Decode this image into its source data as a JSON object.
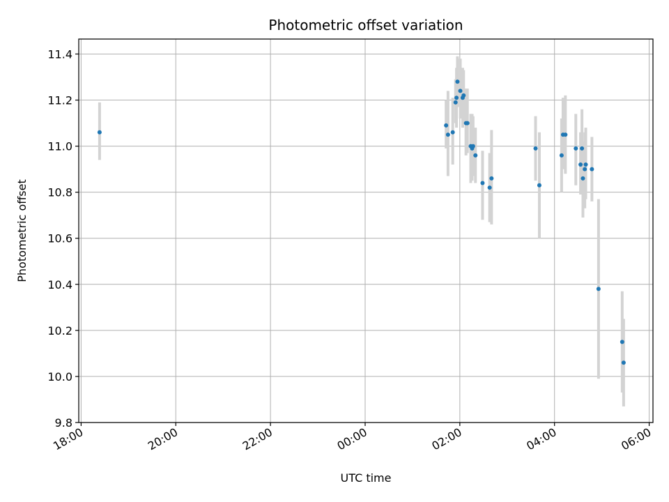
{
  "chart_data": {
    "type": "scatter",
    "title": "Photometric offset variation",
    "xlabel": "UTC time",
    "ylabel": "Photometric offset",
    "xlim": [
      -0.05,
      12.08
    ],
    "ylim": [
      9.8,
      11.465
    ],
    "grid": true,
    "x_unit": "hours since 18:00 UTC",
    "x_ticks": [
      {
        "value": 0,
        "label": "18:00"
      },
      {
        "value": 2,
        "label": "20:00"
      },
      {
        "value": 4,
        "label": "22:00"
      },
      {
        "value": 6,
        "label": "00:00"
      },
      {
        "value": 8,
        "label": "02:00"
      },
      {
        "value": 10,
        "label": "04:00"
      },
      {
        "value": 12,
        "label": "06:00"
      }
    ],
    "y_ticks": [
      {
        "value": 9.8,
        "label": "9.8"
      },
      {
        "value": 10.0,
        "label": "10.0"
      },
      {
        "value": 10.2,
        "label": "10.2"
      },
      {
        "value": 10.4,
        "label": "10.4"
      },
      {
        "value": 10.6,
        "label": "10.6"
      },
      {
        "value": 10.8,
        "label": "10.8"
      },
      {
        "value": 11.0,
        "label": "11.0"
      },
      {
        "value": 11.2,
        "label": "11.2"
      },
      {
        "value": 11.4,
        "label": "11.4"
      }
    ],
    "colors": {
      "point": "#1f77b4",
      "errorbar": "#d3d3d3",
      "grid": "#b0b0b0",
      "axis": "#000000"
    },
    "series": [
      {
        "name": "offset",
        "points": [
          {
            "x": 0.39,
            "y": 11.06,
            "lo": 10.94,
            "hi": 11.19
          },
          {
            "x": 7.71,
            "y": 11.09,
            "lo": 10.99,
            "hi": 11.2
          },
          {
            "x": 7.75,
            "y": 11.05,
            "lo": 10.87,
            "hi": 11.24
          },
          {
            "x": 7.85,
            "y": 11.06,
            "lo": 10.92,
            "hi": 11.21
          },
          {
            "x": 7.91,
            "y": 11.19,
            "lo": 11.1,
            "hi": 11.29
          },
          {
            "x": 7.93,
            "y": 11.21,
            "lo": 11.08,
            "hi": 11.34
          },
          {
            "x": 7.95,
            "y": 11.28,
            "lo": 11.17,
            "hi": 11.39
          },
          {
            "x": 8.01,
            "y": 11.24,
            "lo": 11.12,
            "hi": 11.38
          },
          {
            "x": 8.06,
            "y": 11.21,
            "lo": 11.08,
            "hi": 11.34
          },
          {
            "x": 8.08,
            "y": 11.22,
            "lo": 11.1,
            "hi": 11.33
          },
          {
            "x": 8.13,
            "y": 11.1,
            "lo": 10.96,
            "hi": 11.25
          },
          {
            "x": 8.16,
            "y": 11.1,
            "lo": 10.97,
            "hi": 11.25
          },
          {
            "x": 8.23,
            "y": 11.0,
            "lo": 10.84,
            "hi": 11.14
          },
          {
            "x": 8.26,
            "y": 10.99,
            "lo": 10.85,
            "hi": 11.14
          },
          {
            "x": 8.28,
            "y": 11.0,
            "lo": 10.87,
            "hi": 11.13
          },
          {
            "x": 8.33,
            "y": 10.96,
            "lo": 10.84,
            "hi": 11.08
          },
          {
            "x": 8.48,
            "y": 10.84,
            "lo": 10.68,
            "hi": 10.98
          },
          {
            "x": 8.63,
            "y": 10.82,
            "lo": 10.67,
            "hi": 10.97
          },
          {
            "x": 8.67,
            "y": 10.86,
            "lo": 10.66,
            "hi": 11.07
          },
          {
            "x": 9.6,
            "y": 10.99,
            "lo": 10.85,
            "hi": 11.13
          },
          {
            "x": 9.68,
            "y": 10.83,
            "lo": 10.6,
            "hi": 11.06
          },
          {
            "x": 10.15,
            "y": 10.96,
            "lo": 10.8,
            "hi": 11.12
          },
          {
            "x": 10.18,
            "y": 11.05,
            "lo": 10.9,
            "hi": 11.21
          },
          {
            "x": 10.23,
            "y": 11.05,
            "lo": 10.88,
            "hi": 11.22
          },
          {
            "x": 10.45,
            "y": 10.99,
            "lo": 10.83,
            "hi": 11.14
          },
          {
            "x": 10.55,
            "y": 10.92,
            "lo": 10.79,
            "hi": 11.06
          },
          {
            "x": 10.58,
            "y": 10.99,
            "lo": 10.81,
            "hi": 11.16
          },
          {
            "x": 10.6,
            "y": 10.86,
            "lo": 10.69,
            "hi": 11.02
          },
          {
            "x": 10.64,
            "y": 10.9,
            "lo": 10.73,
            "hi": 11.06
          },
          {
            "x": 10.66,
            "y": 10.92,
            "lo": 10.77,
            "hi": 11.08
          },
          {
            "x": 10.79,
            "y": 10.9,
            "lo": 10.76,
            "hi": 11.04
          },
          {
            "x": 10.93,
            "y": 10.38,
            "lo": 9.99,
            "hi": 10.77
          },
          {
            "x": 11.43,
            "y": 10.15,
            "lo": 9.93,
            "hi": 10.37
          },
          {
            "x": 11.46,
            "y": 10.06,
            "lo": 9.87,
            "hi": 10.25
          }
        ]
      }
    ]
  }
}
